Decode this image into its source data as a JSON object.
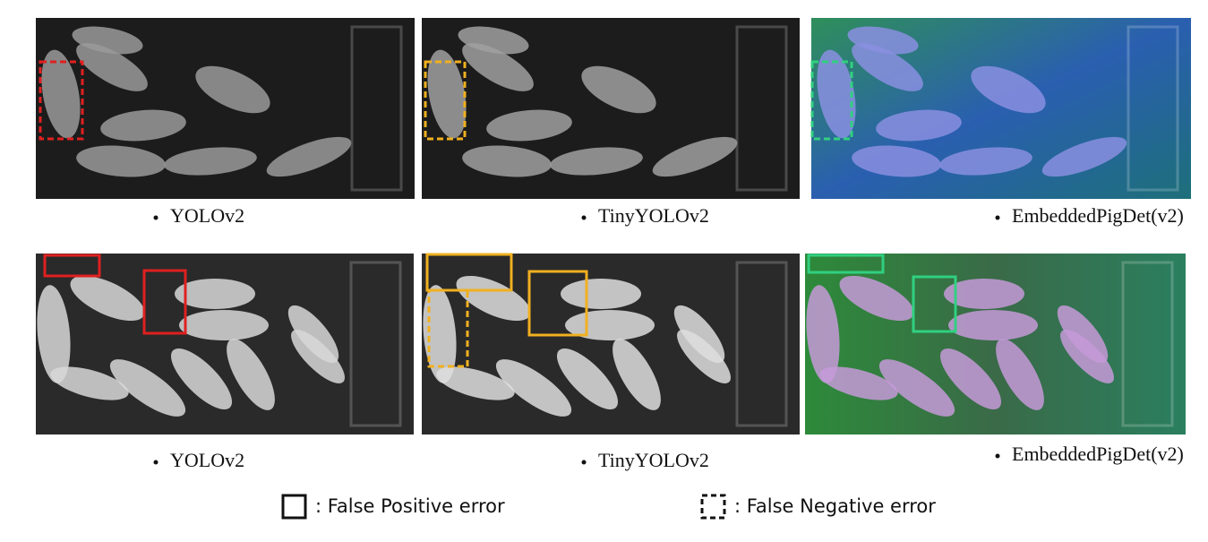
{
  "panels": [
    {
      "caption": "YOLOv2"
    },
    {
      "caption": "TinyYOLOv2"
    },
    {
      "caption": "EmbeddedPigDet(v2)"
    },
    {
      "caption": "YOLOv2"
    },
    {
      "caption": "TinyYOLOv2"
    },
    {
      "caption": "EmbeddedPigDet(v2)"
    }
  ],
  "legend": [
    {
      "label": ": False Positive error"
    },
    {
      "label": ": False Negative error"
    }
  ]
}
